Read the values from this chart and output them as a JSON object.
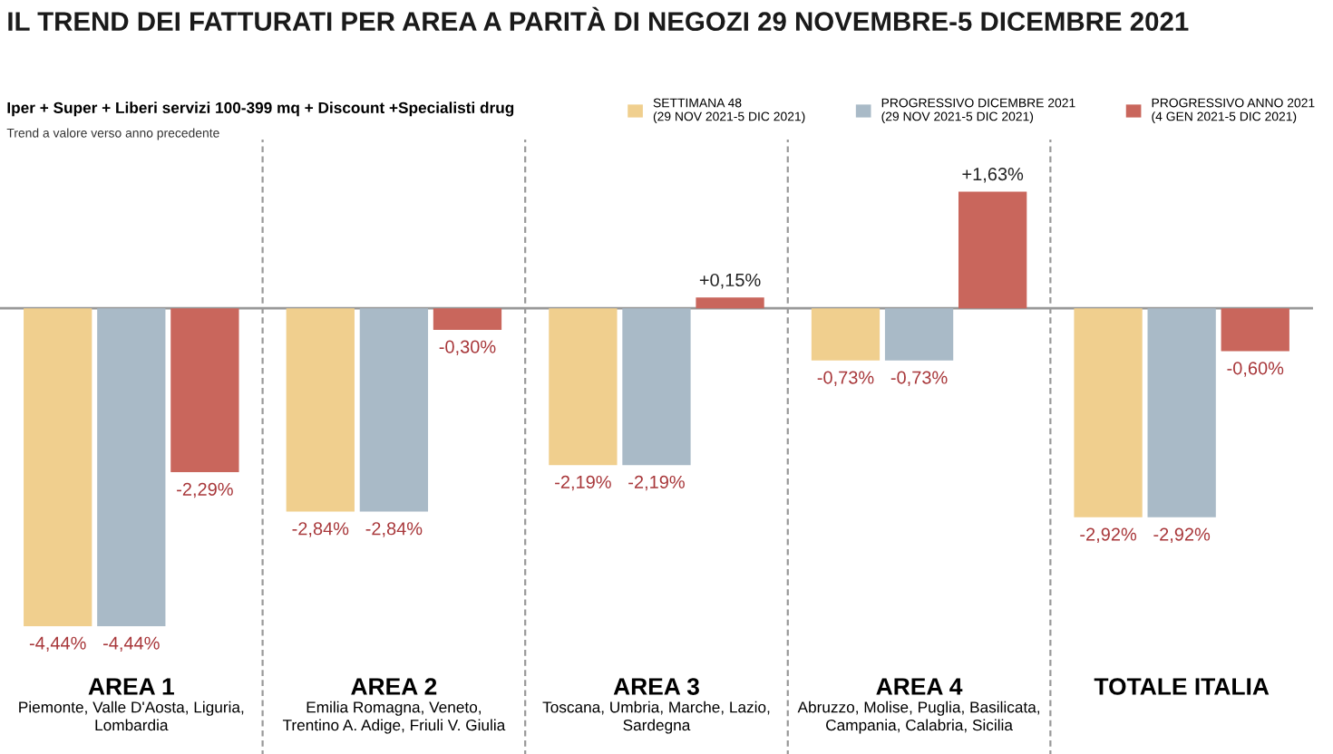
{
  "chart_data": {
    "type": "bar",
    "title": "IL TREND DEI FATTURATI PER AREA A PARITÀ DI NEGOZI 29 NOVEMBRE-5 DICEMBRE 2021",
    "subtitle": "Iper + Super + Liberi servizi 100-399 mq + Discount +Specialisti drug",
    "annotations": [
      "Trend a valore verso anno precedente",
      "Piemonte, Valle D'Aosta, Liguria,\nLombardia",
      "Emilia Romagna, Veneto,\nTrentino A. Adige, Friuli V. Giulia",
      "Toscana, Umbria, Marche, Lazio,\nSardegna",
      "Abruzzo, Molise, Puglia, Basilicata,\nCampania, Calabria, Sicilia"
    ],
    "categories": [
      "AREA 1",
      "AREA 2",
      "AREA 3",
      "AREA 4",
      "TOTALE ITALIA"
    ],
    "series": [
      {
        "name": "SETTIMANA 48\n(29 NOV 2021-5 DIC 2021)",
        "color": "#f0cf8e",
        "values": [
          -4.44,
          -2.84,
          -2.19,
          -0.73,
          -2.92
        ],
        "value_labels": [
          "-4,44%",
          "-2,84%",
          "-2,19%",
          "-0,73%",
          "-2,92%"
        ]
      },
      {
        "name": "PROGRESSIVO DICEMBRE 2021\n(29 NOV 2021-5 DIC 2021)",
        "color": "#a9bac7",
        "values": [
          -4.44,
          -2.84,
          -2.19,
          -0.73,
          -2.92
        ],
        "value_labels": [
          "-4,44%",
          "-2,84%",
          "-2,19%",
          "-0,73%",
          "-2,92%"
        ]
      },
      {
        "name": "PROGRESSIVO ANNO 2021\n(4 GEN 2021-5 DIC 2021)",
        "color": "#c9665c",
        "values": [
          -2.29,
          -0.3,
          0.15,
          1.63,
          -0.6
        ],
        "value_labels": [
          "-2,29%",
          "-0,30%",
          "+0,15%",
          "+1,63%",
          "-0,60%"
        ]
      }
    ],
    "legend": "top right",
    "grid": false
  }
}
